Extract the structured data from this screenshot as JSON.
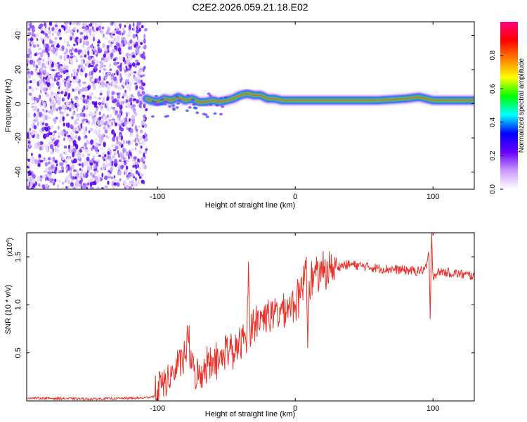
{
  "title": "C2E2.2026.059.21.18.E02",
  "chart_data": [
    {
      "type": "heatmap",
      "title": "C2E2.2026.059.21.18.E02",
      "xlabel": "Height of straight line (km)",
      "ylabel": "Frequency (Hz)",
      "xlim": [
        -195,
        130
      ],
      "ylim": [
        -50,
        48
      ],
      "x_ticks": [
        -100,
        0,
        100
      ],
      "x_tick_labels": [
        "-100",
        "0",
        "100"
      ],
      "y_ticks": [
        -40,
        -20,
        0,
        20,
        40
      ],
      "y_tick_labels": [
        "-40",
        "-20",
        "0",
        "20",
        "40"
      ],
      "noise_region_x": [
        -195,
        -108
      ],
      "signal_track": {
        "x": [
          -108,
          -105,
          -100,
          -95,
          -90,
          -85,
          -80,
          -75,
          -70,
          -65,
          -60,
          -55,
          -50,
          -45,
          -40,
          -35,
          -30,
          -25,
          -20,
          -15,
          -10,
          -5,
          0,
          10,
          20,
          40,
          60,
          80,
          90,
          95,
          100,
          110,
          120,
          130
        ],
        "freq": [
          3,
          2,
          1,
          3,
          2,
          4,
          2,
          3,
          1,
          1,
          2,
          1,
          2,
          3,
          5,
          6,
          5,
          5,
          3,
          3,
          2,
          2,
          2,
          2,
          2,
          2,
          2,
          3,
          4,
          3,
          2,
          2,
          2,
          2
        ]
      },
      "colorbar": {
        "label": "Normalized spectral amplitude",
        "ticks": [
          0.0,
          0.2,
          0.4,
          0.6,
          0.8
        ],
        "tick_labels": [
          "0.0",
          "0.2",
          "0.4",
          "0.6",
          "0.8"
        ],
        "range": [
          0,
          1
        ],
        "colors": [
          "#ffffff",
          "#cc99ff",
          "#6600ff",
          "#0000ff",
          "#00ffff",
          "#00ff00",
          "#ffff00",
          "#ff8000",
          "#ff0000",
          "#ff0080"
        ]
      },
      "legend": "right"
    },
    {
      "type": "line",
      "xlabel": "Height of straight line (km)",
      "ylabel": "SNR (10 * v/v)",
      "multiplier_label": "(x10",
      "multiplier_exp": "4",
      "multiplier_close": ")",
      "xlim": [
        -195,
        130
      ],
      "ylim": [
        0,
        1.75
      ],
      "x_ticks": [
        -100,
        0,
        100
      ],
      "x_tick_labels": [
        "-100",
        "0",
        "100"
      ],
      "y_ticks": [
        0.5,
        1.0,
        1.5
      ],
      "y_tick_labels": [
        "0.5",
        "1.0",
        "1.5"
      ],
      "series": [
        {
          "name": "SNR",
          "color": "#e8322a",
          "x": [
            -195,
            -150,
            -110,
            -102,
            -100,
            -95,
            -90,
            -85,
            -80,
            -78,
            -75,
            -70,
            -65,
            -60,
            -55,
            -50,
            -45,
            -40,
            -35,
            -34,
            -33,
            -30,
            -25,
            -20,
            -15,
            -10,
            -5,
            0,
            5,
            8,
            9,
            10,
            15,
            20,
            25,
            30,
            40,
            50,
            60,
            70,
            80,
            90,
            95,
            97,
            98,
            99,
            100,
            105,
            110,
            120,
            130
          ],
          "y": [
            0.03,
            0.02,
            0.03,
            0.05,
            0.12,
            0.18,
            0.25,
            0.35,
            0.45,
            0.7,
            0.35,
            0.25,
            0.38,
            0.45,
            0.4,
            0.55,
            0.5,
            0.6,
            0.7,
            1.45,
            0.75,
            0.8,
            0.85,
            0.9,
            0.9,
            0.95,
            1.0,
            1.0,
            1.15,
            1.5,
            0.55,
            1.25,
            1.3,
            1.35,
            1.38,
            1.4,
            1.42,
            1.4,
            1.38,
            1.37,
            1.36,
            1.35,
            1.38,
            1.55,
            0.85,
            1.75,
            1.3,
            1.35,
            1.34,
            1.32,
            1.3
          ]
        }
      ]
    }
  ]
}
